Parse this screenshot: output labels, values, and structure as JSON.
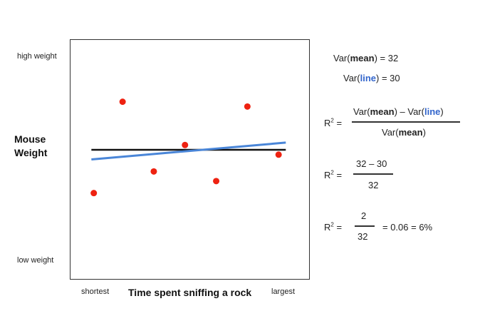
{
  "chart_data": {
    "type": "scatter",
    "title": "",
    "xlabel": "Time spent sniffing a rock",
    "ylabel": "Mouse Weight",
    "x_tick_labels": {
      "low": "shortest",
      "high": "largest"
    },
    "y_tick_labels": {
      "high": "high weight",
      "low": "low weight"
    },
    "xlim": [
      0,
      10
    ],
    "ylim": [
      0,
      10
    ],
    "grid": false,
    "points": [
      {
        "x": 1.0,
        "y": 3.6
      },
      {
        "x": 2.2,
        "y": 7.4
      },
      {
        "x": 3.5,
        "y": 4.5
      },
      {
        "x": 4.8,
        "y": 5.6
      },
      {
        "x": 6.1,
        "y": 4.1
      },
      {
        "x": 7.4,
        "y": 7.2
      },
      {
        "x": 8.7,
        "y": 5.2
      }
    ],
    "mean_line": {
      "y": 5.4,
      "color": "#111111"
    },
    "fit_line": {
      "x": [
        0.9,
        9.0
      ],
      "y": [
        5.0,
        5.7
      ],
      "color": "#4a86d8"
    },
    "point_color": "#ee2211"
  },
  "equations": {
    "var_mean": {
      "prefix": "Var(",
      "term": "mean",
      "suffix": ") = 32"
    },
    "var_line": {
      "prefix": "Var(",
      "term": "line",
      "suffix": ") = 30"
    },
    "r2_label": "R",
    "r2_exp": "2",
    "r2_eq": " =",
    "formula_num": {
      "p1": "Var(",
      "t1": "mean",
      "p2": ") – Var(",
      "t2": "line",
      "p3": ")"
    },
    "formula_den": {
      "p1": "Var(",
      "t1": "mean",
      "p2": ")"
    },
    "step2_num": "32 – 30",
    "step2_den": "32",
    "step3_num": "2",
    "step3_den": "32",
    "step3_result": "= 0.06 = 6%"
  }
}
